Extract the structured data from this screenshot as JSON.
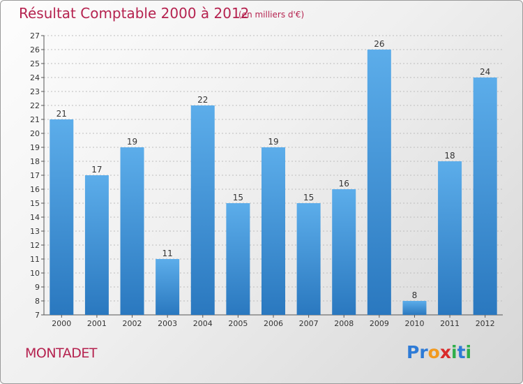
{
  "header": {
    "title": "Résultat Comptable 2000 à 2012",
    "subtitle": "(en milliers d'€)"
  },
  "footer": {
    "city": "MONTADET",
    "logo_letters": [
      "P",
      "r",
      "o",
      "x",
      "i",
      "t",
      "i"
    ],
    "logo_colors": [
      "#2e7bd6",
      "#2e7bd6",
      "#f29a1f",
      "#d92b2b",
      "#2fae4a",
      "#2e7bd6",
      "#2fae4a"
    ]
  },
  "colors": {
    "bar_top": "#5cadea",
    "bar_bottom": "#2a78bf",
    "grid": "#bdbdbd",
    "title": "#b5224f"
  },
  "chart_data": {
    "type": "bar",
    "title": "Résultat Comptable 2000 à 2012",
    "subtitle": "(en milliers d'€)",
    "categories": [
      "2000",
      "2001",
      "2002",
      "2003",
      "2004",
      "2005",
      "2006",
      "2007",
      "2008",
      "2009",
      "2010",
      "2011",
      "2012"
    ],
    "values": [
      21,
      17,
      19,
      11,
      22,
      15,
      19,
      15,
      16,
      26,
      8,
      18,
      24
    ],
    "ylim": [
      7,
      27
    ],
    "yticks": [
      7,
      8,
      9,
      10,
      11,
      12,
      13,
      14,
      15,
      16,
      17,
      18,
      19,
      20,
      21,
      22,
      23,
      24,
      25,
      26,
      27
    ],
    "grid": true,
    "xlabel": "",
    "ylabel": ""
  }
}
